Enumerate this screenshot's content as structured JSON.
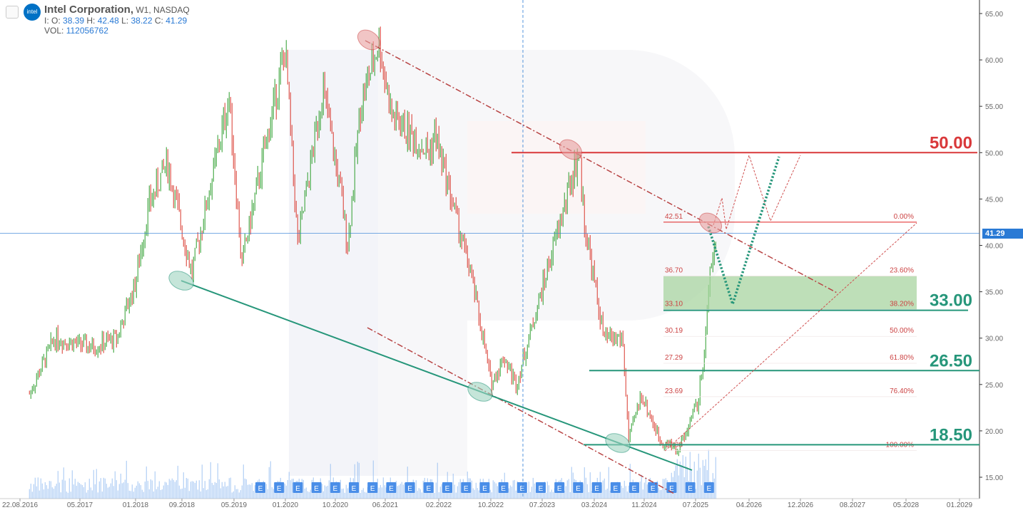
{
  "header": {
    "title": "Intel Corporation,",
    "interval": "W1,",
    "exchange": "NASDAQ",
    "o_label": "I: O:",
    "open": "38.39",
    "h_label": "H:",
    "high": "42.48",
    "l_label": "L:",
    "low": "38.22",
    "c_label": "C:",
    "close": "41.29",
    "vol_label": "VOL:",
    "volume": "112056762",
    "logo_text": "intel"
  },
  "colors": {
    "up": "#2e9e2e",
    "down": "#d9382e",
    "resistance": "#d9383a",
    "support": "#26967a",
    "zone": "#a8d4a0",
    "price_line": "#2a7ad5"
  },
  "chart_data": {
    "type": "candlestick",
    "ylim": [
      13,
      66
    ],
    "y_ticks": [
      "65.00",
      "60.00",
      "55.00",
      "50.00",
      "45.00",
      "40.00",
      "35.00",
      "30.00",
      "25.00",
      "20.00",
      "15.00"
    ],
    "x_ticks": [
      "22.08.2016",
      "05.2017",
      "01.2018",
      "09.2018",
      "05.2019",
      "01.2020",
      "10.2020",
      "06.2021",
      "02.2022",
      "10.2022",
      "07.2023",
      "03.2024",
      "11.2024",
      "07.2025",
      "04.2026",
      "12.2026",
      "08.2027",
      "05.2028",
      "01.2029"
    ],
    "approx_price_path": [
      [
        "2016-08",
        24
      ],
      [
        "2016-12",
        30
      ],
      [
        "2017-06",
        29
      ],
      [
        "2017-10",
        30
      ],
      [
        "2018-01",
        36
      ],
      [
        "2018-03",
        44
      ],
      [
        "2018-06",
        49
      ],
      [
        "2018-09",
        40
      ],
      [
        "2018-10",
        37
      ],
      [
        "2019-04",
        56
      ],
      [
        "2019-06",
        38
      ],
      [
        "2019-12",
        58
      ],
      [
        "2020-01",
        61
      ],
      [
        "2020-03",
        40
      ],
      [
        "2020-07",
        57
      ],
      [
        "2020-10",
        45
      ],
      [
        "2020-11",
        40
      ],
      [
        "2021-01",
        55
      ],
      [
        "2021-04",
        62
      ],
      [
        "2021-06",
        54
      ],
      [
        "2021-12",
        50
      ],
      [
        "2022-01",
        52
      ],
      [
        "2022-04",
        44
      ],
      [
        "2022-07",
        36
      ],
      [
        "2022-10",
        25
      ],
      [
        "2022-12",
        28
      ],
      [
        "2023-02",
        25
      ],
      [
        "2023-06",
        35
      ],
      [
        "2023-12",
        50
      ],
      [
        "2024-01",
        42
      ],
      [
        "2024-04",
        30
      ],
      [
        "2024-07",
        30
      ],
      [
        "2024-08",
        19
      ],
      [
        "2024-10",
        24
      ],
      [
        "2025-01",
        19
      ],
      [
        "2025-04",
        18
      ],
      [
        "2025-07",
        23
      ],
      [
        "2025-08",
        28
      ],
      [
        "2025-09",
        38
      ],
      [
        "2025-10",
        41.29
      ]
    ],
    "last_price": "41.29",
    "levels": [
      {
        "label": "50.00",
        "value": 50,
        "kind": "resistance"
      },
      {
        "label": "33.00",
        "value": 33,
        "kind": "support"
      },
      {
        "label": "26.50",
        "value": 26.5,
        "kind": "support"
      },
      {
        "label": "18.50",
        "value": 18.5,
        "kind": "support"
      }
    ],
    "fibonacci": [
      {
        "price": "42.51",
        "pct": "0.00%",
        "value": 42.51
      },
      {
        "price": "36.70",
        "pct": "23.60%",
        "value": 36.7
      },
      {
        "price": "33.10",
        "pct": "38.20%",
        "value": 33.1
      },
      {
        "price": "30.19",
        "pct": "50.00%",
        "value": 30.19
      },
      {
        "price": "27.29",
        "pct": "61.80%",
        "value": 27.29
      },
      {
        "price": "23.69",
        "pct": "76.40%",
        "value": 23.69
      },
      {
        "price": "17.88",
        "pct": "100.00%",
        "value": 17.88
      }
    ],
    "earnings_marker": "E",
    "earnings_count": 25
  }
}
